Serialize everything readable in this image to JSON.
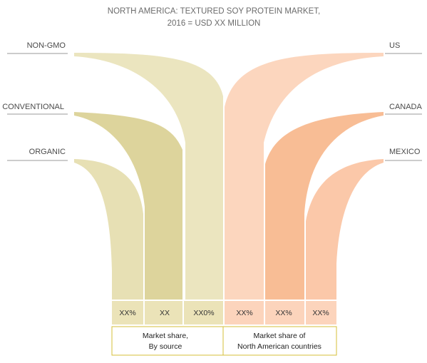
{
  "chart_data": {
    "type": "area",
    "title_lines": [
      "NORTH AMERICA: TEXTURED SOY PROTEIN MARKET,",
      "2016 = USD XX MILLION"
    ],
    "source": {
      "categories": [
        "NON-GMO",
        "CONVENTIONAL",
        "ORGANIC"
      ],
      "values": [
        "XX0%",
        "XX",
        "XX%"
      ],
      "group_label": [
        "Market share,",
        "By source"
      ]
    },
    "countries": {
      "categories": [
        "US",
        "CANADA",
        "MEXICO"
      ],
      "values": [
        "XX%",
        "XX%",
        "XX%"
      ],
      "group_label": [
        "Market share of",
        "North American countries"
      ]
    }
  },
  "colors": {
    "source_light": "#ebe5bf",
    "source_mid": "#e7e0b4",
    "source_dark": "#ddd49c",
    "country_light": "#fcd6be",
    "country_mid": "#fbc8a9",
    "country_dark": "#f8bd95",
    "label_band_source": "#ebe3b8",
    "label_band_country": "#fcd4bc",
    "box_border": "#d4bf3a",
    "leader_line": "#9a9a9a"
  }
}
